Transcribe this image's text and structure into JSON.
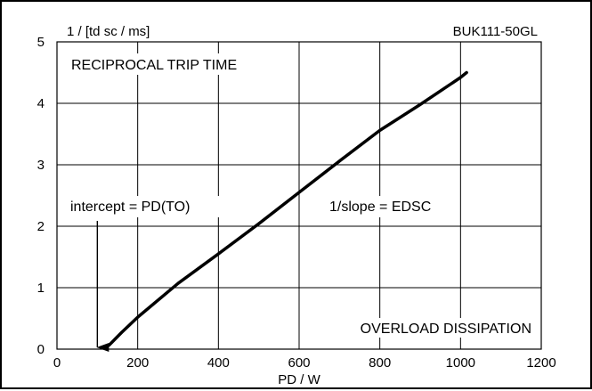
{
  "chart_data": {
    "type": "line",
    "ylabel": "1 / [td sc / ms]",
    "xlabel": "PD / W",
    "part_number": "BUK111-50GL",
    "xlim": [
      0,
      1200
    ],
    "ylim": [
      0,
      5
    ],
    "xticks": [
      0,
      200,
      400,
      600,
      800,
      1000,
      1200
    ],
    "yticks": [
      0,
      1,
      2,
      3,
      4,
      5
    ],
    "grid": true,
    "annotations": {
      "top_left": "RECIPROCAL TRIP TIME",
      "intercept": "intercept = PD(TO)",
      "slope": "1/slope = EDSC",
      "bottom_right": "OVERLOAD DISSIPATION"
    },
    "intercept_x": 100,
    "series": [
      {
        "points": [
          [
            115,
            0.0
          ],
          [
            130,
            0.07
          ],
          [
            160,
            0.27
          ],
          [
            200,
            0.52
          ],
          [
            300,
            1.07
          ],
          [
            400,
            1.55
          ],
          [
            500,
            2.04
          ],
          [
            600,
            2.55
          ],
          [
            700,
            3.06
          ],
          [
            800,
            3.56
          ],
          [
            900,
            3.98
          ],
          [
            1000,
            4.42
          ],
          [
            1015,
            4.5
          ]
        ]
      }
    ]
  }
}
